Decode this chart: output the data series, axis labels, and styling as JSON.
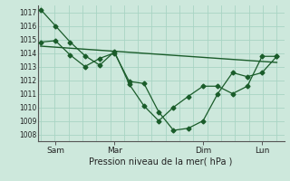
{
  "background_color": "#cde8dc",
  "grid_color": "#a8d4c4",
  "line_color": "#1a5c2a",
  "title": "Pression niveau de la mer( hPa )",
  "ylim": [
    1007.5,
    1017.5
  ],
  "yticks": [
    1008,
    1009,
    1010,
    1011,
    1012,
    1013,
    1014,
    1015,
    1016,
    1017
  ],
  "xtick_labels": [
    "Sam",
    "Mar",
    "Dim",
    "Lun"
  ],
  "xtick_positions": [
    1,
    5,
    11,
    15
  ],
  "xlim": [
    -0.2,
    16.5
  ],
  "series1_x": [
    0,
    1,
    2,
    3,
    4,
    5,
    6,
    7,
    8,
    9,
    10,
    11,
    12,
    13,
    14,
    15,
    16
  ],
  "series1_y": [
    1017.2,
    1016.0,
    1014.8,
    1013.8,
    1013.1,
    1014.1,
    1011.7,
    1010.1,
    1009.0,
    1010.0,
    1010.8,
    1011.55,
    1011.55,
    1011.0,
    1011.55,
    1013.75,
    1013.75
  ],
  "series2_x": [
    0,
    1,
    2,
    3,
    4,
    5,
    6,
    7,
    8,
    9,
    10,
    11,
    12,
    13,
    14,
    15,
    16
  ],
  "series2_y": [
    1014.8,
    1014.9,
    1013.85,
    1013.0,
    1013.6,
    1014.0,
    1011.9,
    1011.75,
    1009.65,
    1008.3,
    1008.45,
    1009.0,
    1011.0,
    1012.55,
    1012.25,
    1012.55,
    1013.75
  ],
  "trend_x": [
    0,
    16
  ],
  "trend_y": [
    1014.5,
    1013.3
  ]
}
